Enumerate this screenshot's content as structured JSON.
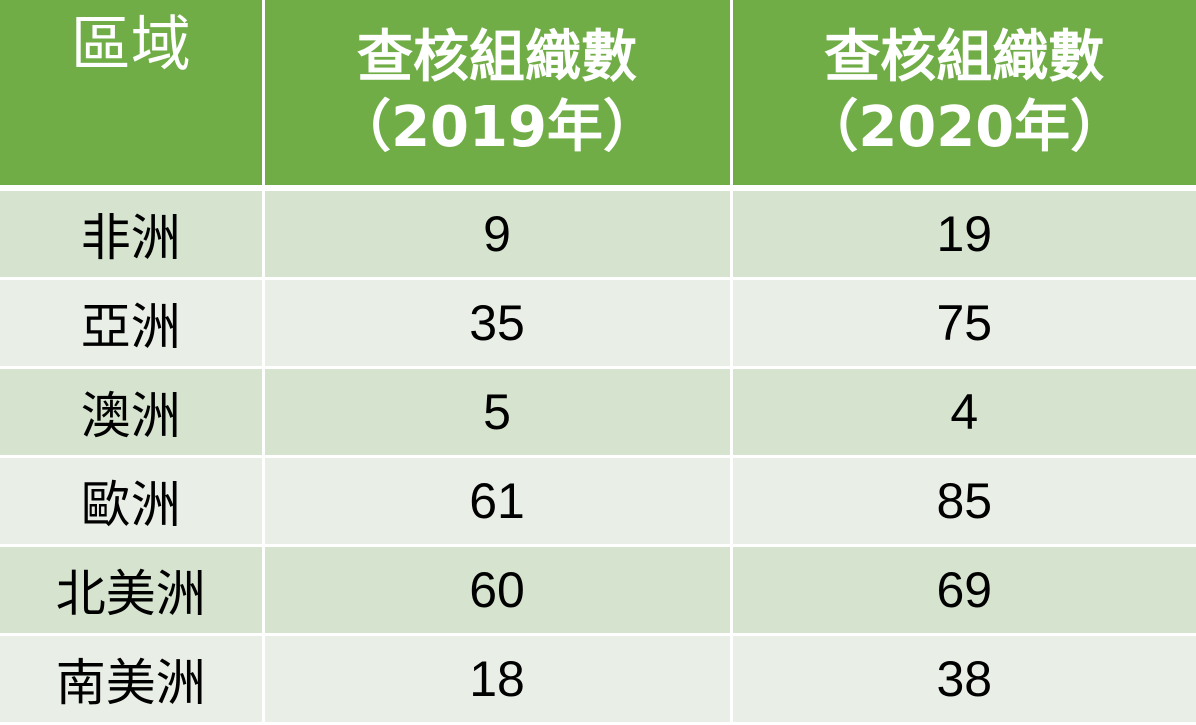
{
  "table": {
    "headers": {
      "region": "區域",
      "col2019_line1": "查核組織數",
      "col2019_line2": "（2019年）",
      "col2020_line1": "查核組織數",
      "col2020_line2": "（2020年）"
    },
    "rows": [
      {
        "region": "非洲",
        "y2019": "9",
        "y2020": "19"
      },
      {
        "region": "亞洲",
        "y2019": "35",
        "y2020": "75"
      },
      {
        "region": "澳洲",
        "y2019": "5",
        "y2020": "4"
      },
      {
        "region": "歐洲",
        "y2019": "61",
        "y2020": "85"
      },
      {
        "region": "北美洲",
        "y2019": "60",
        "y2020": "69"
      },
      {
        "region": "南美洲",
        "y2019": "18",
        "y2020": "38"
      }
    ]
  },
  "colors": {
    "header_bg": "#70ad47",
    "row_odd_bg": "#d5e3cf",
    "row_even_bg": "#e9efe7"
  }
}
